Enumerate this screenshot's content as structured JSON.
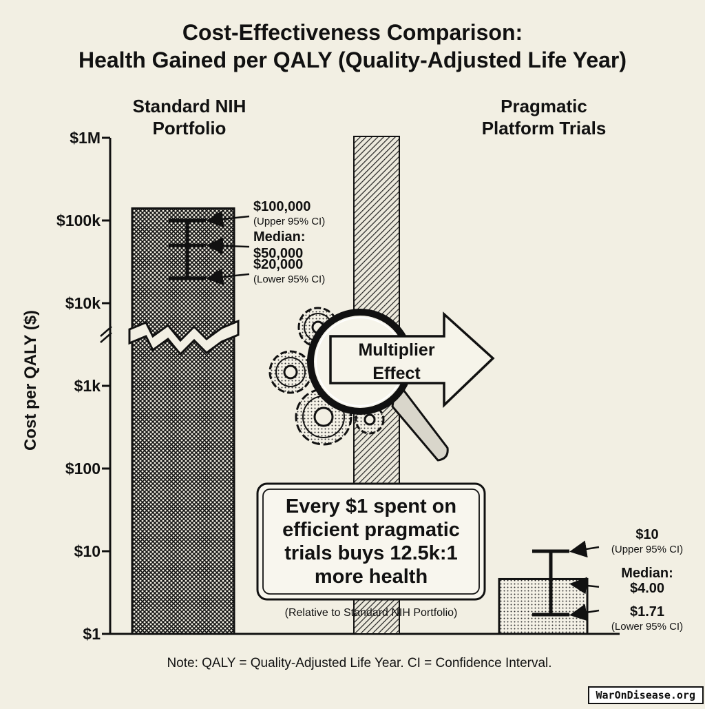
{
  "chart_data": {
    "type": "bar",
    "title_lines": [
      "Cost-Effectiveness Comparison:",
      "Health Gained per QALY (Quality-Adjusted Life Year)"
    ],
    "ylabel": "Cost per QALY ($)",
    "yscale": "log",
    "ylim": [
      1,
      1000000
    ],
    "yticks": [
      {
        "value": 1000000,
        "label": "$1M"
      },
      {
        "value": 100000,
        "label": "$100k"
      },
      {
        "value": 10000,
        "label": "$10k"
      },
      {
        "value": 1000,
        "label": "$1k"
      },
      {
        "value": 100,
        "label": "$100"
      },
      {
        "value": 10,
        "label": "$10"
      },
      {
        "value": 1,
        "label": "$1"
      }
    ],
    "axis_break": true,
    "grid": false,
    "categories": [
      {
        "label_lines": [
          "Standard NIH",
          "Portfolio"
        ],
        "value": 50000,
        "ci_low": 20000,
        "ci_high": 100000,
        "annotations": [
          {
            "value_text": "$100,000",
            "sub_text": "(Upper 95% CI)",
            "at": 100000
          },
          {
            "value_text": "Median:",
            "value_text2": "$50,000",
            "at": 50000
          },
          {
            "value_text": "$20,000",
            "sub_text": "(Lower 95% CI)",
            "at": 20000
          }
        ]
      },
      {
        "label_lines": [
          "Pragmatic",
          "Platform Trials"
        ],
        "value": 4.0,
        "ci_low": 1.71,
        "ci_high": 10,
        "annotations": [
          {
            "value_text": "$10",
            "sub_text": "(Upper 95% CI)",
            "at": 10
          },
          {
            "value_text": "Median:",
            "value_text2": "$4.00",
            "at": 4.0
          },
          {
            "value_text": "$1.71",
            "sub_text": "(Lower 95% CI)",
            "at": 1.71
          }
        ]
      }
    ],
    "multiplier_label_lines": [
      "Multiplier",
      "Effect"
    ],
    "callout": {
      "lines": [
        "Every $1 spent on",
        "efficient pragmatic",
        "trials buys 12.5k:1",
        "more health"
      ],
      "subnote": "(Relative to Standard NIH Portfolio)"
    },
    "note": "Note: QALY = Quality-Adjusted Life Year. CI = Confidence Interval."
  },
  "brand": "WarOnDisease.org",
  "colors": {
    "background": "#f2efe3",
    "ink": "#111111"
  }
}
